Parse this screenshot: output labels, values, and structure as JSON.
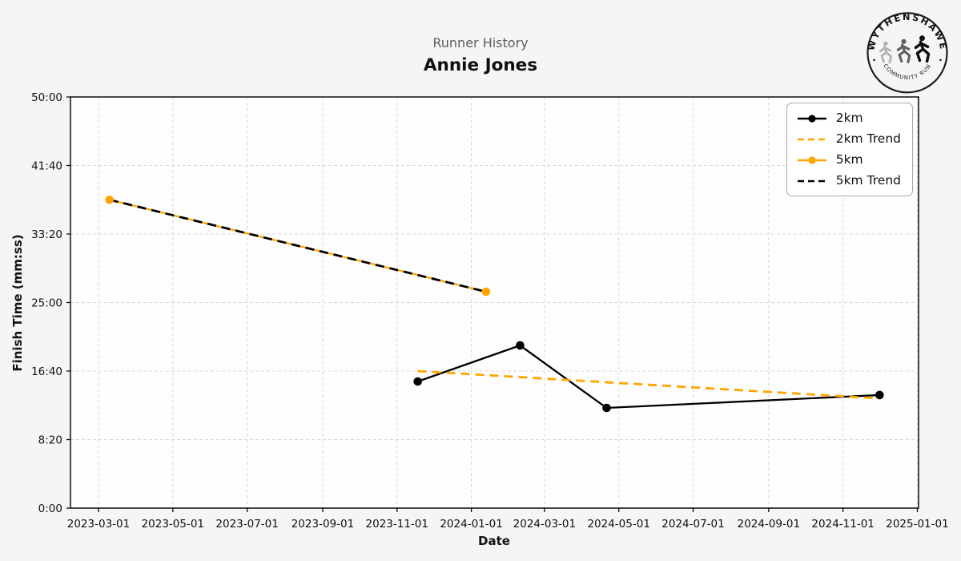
{
  "logo": {
    "top_text": "WYTHENSHAWE",
    "bottom_text": "COMMUNITY RUN"
  },
  "colors": {
    "accent_orange": "#FFA500",
    "series_black": "#000000",
    "grid": "#d8d8d8",
    "figure_bg": "#f5f5f3",
    "plot_bg": "#fefefe",
    "spine": "#0d0d0d",
    "tick_text": "#111111"
  },
  "chart_data": {
    "type": "line",
    "subtitle": "Runner History",
    "title": "Annie Jones",
    "xlabel": "Date",
    "ylabel": "Finish Time (mm:ss)",
    "grid": "on",
    "legend_position": "upper right",
    "xlim": [
      "2023-02-06",
      "2025-01-02"
    ],
    "ylim_seconds": [
      0,
      3000
    ],
    "x_ticks": [
      "2023-03-01",
      "2023-05-01",
      "2023-07-01",
      "2023-09-01",
      "2023-11-01",
      "2024-01-01",
      "2024-03-01",
      "2024-05-01",
      "2024-07-01",
      "2024-09-01",
      "2024-11-01",
      "2025-01-01"
    ],
    "y_ticks": [
      {
        "seconds": 0,
        "label": "0:00"
      },
      {
        "seconds": 500,
        "label": "8:20"
      },
      {
        "seconds": 1000,
        "label": "16:40"
      },
      {
        "seconds": 1500,
        "label": "25:00"
      },
      {
        "seconds": 2000,
        "label": "33:20"
      },
      {
        "seconds": 2500,
        "label": "41:40"
      },
      {
        "seconds": 3000,
        "label": "50:00"
      }
    ],
    "series": [
      {
        "name": "2km",
        "color": "#000000",
        "style": "solid",
        "marker": true,
        "points": [
          {
            "date": "2023-11-18",
            "time": "15:24",
            "seconds": 924
          },
          {
            "date": "2024-02-10",
            "time": "19:47",
            "seconds": 1187
          },
          {
            "date": "2024-04-21",
            "time": "12:11",
            "seconds": 731
          },
          {
            "date": "2024-12-01",
            "time": "13:45",
            "seconds": 825
          }
        ]
      },
      {
        "name": "2km Trend",
        "color": "#FFA500",
        "style": "dashed",
        "marker": false,
        "points": [
          {
            "date": "2023-11-18",
            "time": "16:40",
            "seconds": 1000
          },
          {
            "date": "2024-12-01",
            "time": "13:20",
            "seconds": 800
          }
        ]
      },
      {
        "name": "5km",
        "color": "#FFA500",
        "style": "solid",
        "marker": true,
        "points": [
          {
            "date": "2023-03-10",
            "time": "37:30",
            "seconds": 2250
          },
          {
            "date": "2024-01-13",
            "time": "26:19",
            "seconds": 1579
          }
        ]
      },
      {
        "name": "5km Trend",
        "color": "#000000",
        "style": "dashed",
        "marker": false,
        "points": [
          {
            "date": "2023-03-10",
            "time": "37:30",
            "seconds": 2250
          },
          {
            "date": "2024-01-13",
            "time": "26:19",
            "seconds": 1579
          }
        ]
      }
    ]
  }
}
